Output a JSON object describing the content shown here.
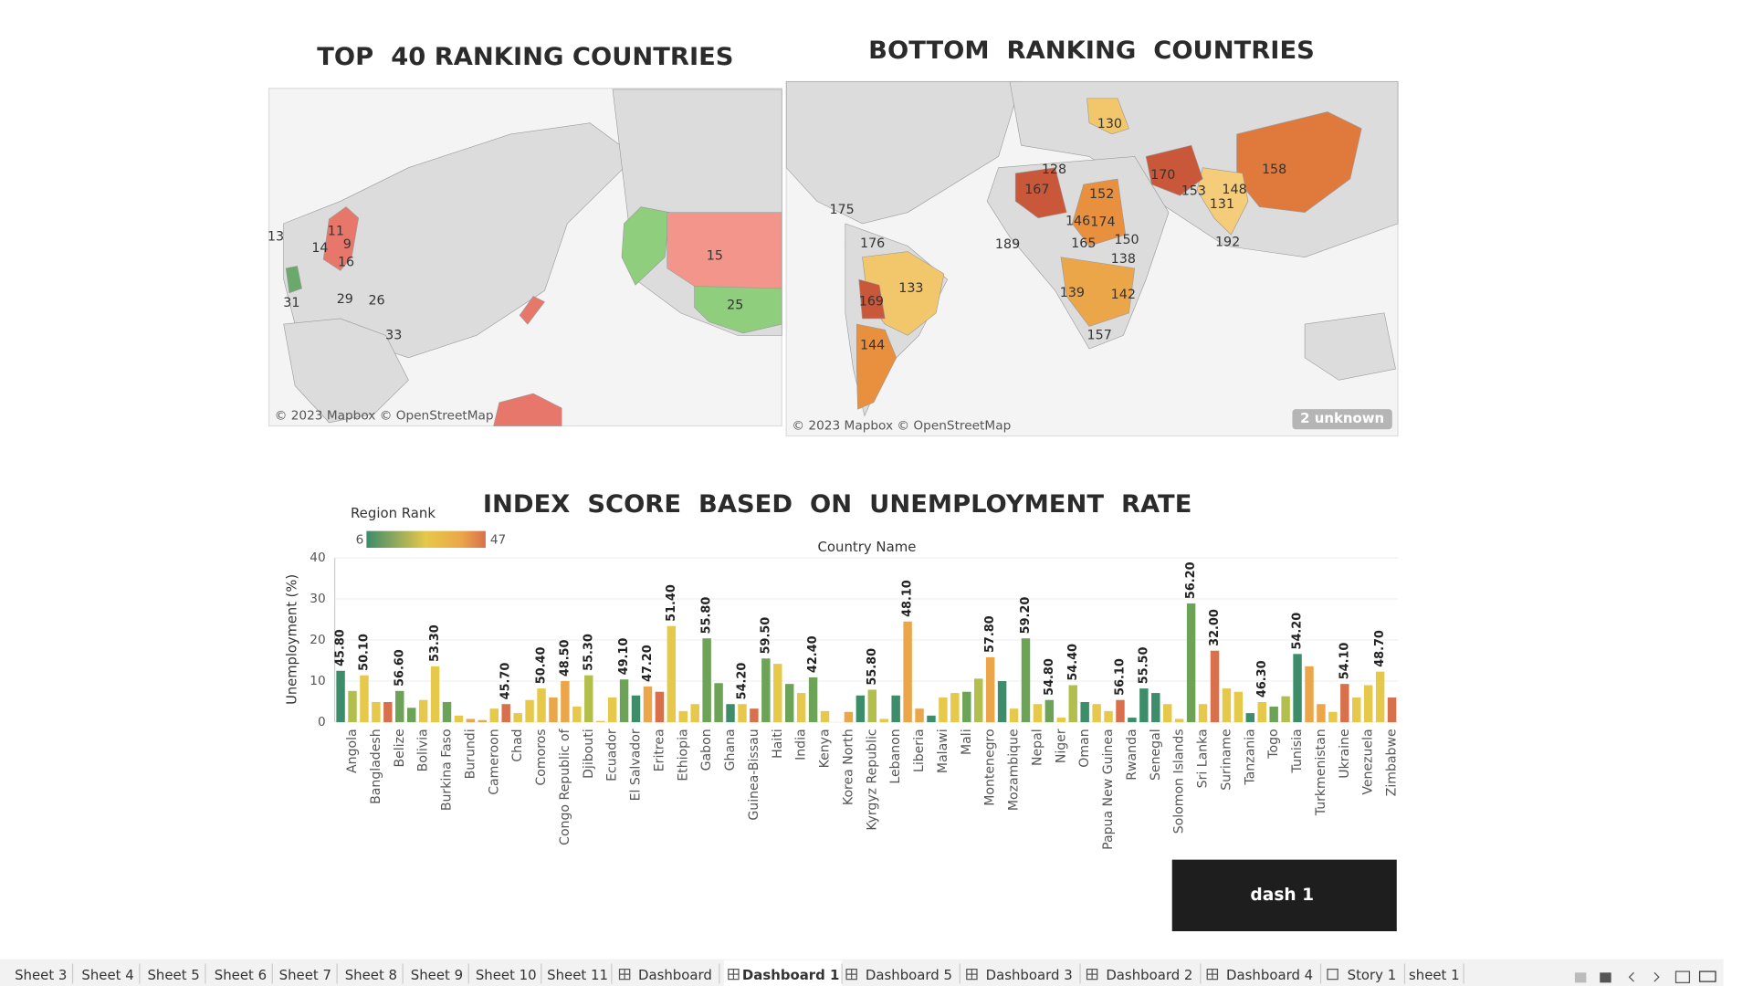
{
  "chart_data": [
    {
      "type": "map",
      "title": "TOP  40 RANKING COUNTRIES",
      "labels": [
        11,
        9,
        13,
        14,
        16,
        29,
        26,
        31,
        33,
        15,
        25
      ],
      "attribution": "© 2023 Mapbox © OpenStreetMap"
    },
    {
      "type": "map",
      "title": "BOTTOM  RANKING  COUNTRIES",
      "labels": [
        133,
        130,
        128,
        167,
        152,
        146,
        174,
        165,
        150,
        138,
        170,
        158,
        153,
        148,
        131,
        192,
        175,
        176,
        169,
        144,
        139,
        142,
        157,
        189
      ],
      "attribution": "© 2023 Mapbox © OpenStreetMap",
      "unknown": "2 unknown"
    },
    {
      "type": "bar",
      "title": "INDEX  SCORE  BASED  ON  UNEMPLOYMENT  RATE",
      "x_label": "Country Name",
      "y_label": "Unemployment (%)",
      "legend": {
        "title": "Region Rank",
        "min": 6,
        "max": 47
      },
      "ylim": [
        0,
        40
      ],
      "yticks": [
        0,
        10,
        20,
        30,
        40
      ],
      "grid": true,
      "categories": [
        null,
        "Angola",
        null,
        "Bangladesh",
        null,
        "Belize",
        null,
        "Bolivia",
        null,
        "Burkina Faso",
        null,
        "Burundi",
        null,
        "Cameroon",
        null,
        "Chad",
        null,
        "Comoros",
        null,
        "Congo Republic of",
        null,
        "Djibouti",
        null,
        "Ecuador",
        null,
        "El Salvador",
        null,
        "Eritrea",
        null,
        "Ethiopia",
        null,
        "Gabon",
        null,
        "Ghana",
        null,
        "Guinea-Bissau",
        null,
        "Haiti",
        null,
        "India",
        null,
        "Kenya",
        null,
        "Korea North",
        null,
        "Kyrgyz Republic",
        null,
        "Lebanon",
        null,
        "Liberia",
        null,
        "Malawi",
        null,
        "Mali",
        null,
        "Montenegro",
        null,
        "Mozambique",
        null,
        "Nepal",
        null,
        "Niger",
        null,
        "Oman",
        null,
        "Papua New Guinea",
        null,
        "Rwanda",
        null,
        "Senegal",
        null,
        "Solomon Islands",
        null,
        "Sri Lanka",
        null,
        "Suriname",
        null,
        "Tanzania",
        null,
        "Togo",
        null,
        "Tunisia",
        null,
        "Turkmenistan",
        null,
        "Ukraine",
        null,
        "Venezuela",
        null,
        "Zimbabwe"
      ],
      "values": [
        12.5,
        7.6,
        11.4,
        4.9,
        4.9,
        7.6,
        3.5,
        5.4,
        13.6,
        4.9,
        1.6,
        0.8,
        0.5,
        3.3,
        4.4,
        2.2,
        5.4,
        8.2,
        6,
        10,
        3.8,
        11.4,
        0.3,
        6,
        10.4,
        6.5,
        8.7,
        7.4,
        23.4,
        2.7,
        4.4,
        20.4,
        9.5,
        4.4,
        4.4,
        3.3,
        15.5,
        14.2,
        9.3,
        7.1,
        10.9,
        2.7,
        0,
        2.5,
        6.5,
        7.9,
        0.8,
        6.5,
        24.5,
        3.3,
        1.6,
        6,
        7.1,
        7.4,
        10.6,
        15.8,
        10,
        3.3,
        20.4,
        4.4,
        5.4,
        1.1,
        9,
        4.9,
        4.4,
        2.7,
        5.4,
        1.1,
        8.2,
        7.1,
        4.4,
        0.8,
        28.9,
        4.4,
        17.4,
        8.2,
        7.4,
        2.2,
        4.9,
        3.8,
        6.3,
        16.6,
        13.6,
        4.4,
        2.5,
        9.3,
        6,
        9,
        12.3,
        6
      ],
      "scores": [
        "45.80",
        null,
        "50.10",
        null,
        null,
        "56.60",
        null,
        null,
        "53.30",
        null,
        null,
        null,
        null,
        null,
        "45.70",
        null,
        null,
        "50.40",
        null,
        "48.50",
        null,
        "55.30",
        null,
        null,
        "49.10",
        null,
        "47.20",
        null,
        "51.40",
        null,
        null,
        "55.80",
        null,
        null,
        "54.20",
        null,
        "59.50",
        null,
        null,
        null,
        "42.40",
        null,
        null,
        null,
        null,
        "55.80",
        null,
        null,
        "48.10",
        null,
        null,
        null,
        null,
        null,
        null,
        "57.80",
        null,
        null,
        "59.20",
        null,
        "54.80",
        null,
        "54.40",
        null,
        null,
        null,
        "56.10",
        null,
        "55.50",
        null,
        null,
        null,
        "56.20",
        null,
        "32.00",
        null,
        null,
        null,
        "46.30",
        null,
        null,
        "54.20",
        null,
        null,
        null,
        "54.10",
        null,
        null,
        "48.70",
        null
      ],
      "colors": [
        "#3d8c6a",
        "#b3bf4c",
        "#e6c84a",
        "#e6c84a",
        "#d8704c",
        "#6da356",
        "#6da356",
        "#e6c84a",
        "#e6c84a",
        "#6da356",
        "#e6c84a",
        "#eba64a",
        "#eba64a",
        "#e6c84a",
        "#d8704c",
        "#e6c84a",
        "#e6c84a",
        "#e6c84a",
        "#eba64a",
        "#eba64a",
        "#e6c84a",
        "#b3bf4c",
        "#e6c84a",
        "#e6c84a",
        "#6da356",
        "#3d8c6a",
        "#eba64a",
        "#d8704c",
        "#e6c84a",
        "#e6c84a",
        "#e6c84a",
        "#6da356",
        "#6da356",
        "#3d8c6a",
        "#e6c84a",
        "#d8704c",
        "#6da356",
        "#e6c84a",
        "#6da356",
        "#e6c84a",
        "#6da356",
        "#e6c84a",
        "#e6c84a",
        "#eba64a",
        "#3d8c6a",
        "#b3bf4c",
        "#e6c84a",
        "#3d8c6a",
        "#eba64a",
        "#eba64a",
        "#3d8c6a",
        "#e6c84a",
        "#e6c84a",
        "#6da356",
        "#b3bf4c",
        "#eba64a",
        "#3d8c6a",
        "#e6c84a",
        "#6da356",
        "#e6c84a",
        "#6da356",
        "#e6c84a",
        "#b3bf4c",
        "#3d8c6a",
        "#e6c84a",
        "#e6c84a",
        "#d8704c",
        "#3d8c6a",
        "#3d8c6a",
        "#3d8c6a",
        "#e6c84a",
        "#e6c84a",
        "#6da356",
        "#e6c84a",
        "#d8704c",
        "#e6c84a",
        "#e6c84a",
        "#3d8c6a",
        "#e6c84a",
        "#6da356",
        "#b3bf4c",
        "#3d8c6a",
        "#eba64a",
        "#eba64a",
        "#e6c84a",
        "#d8704c",
        "#e6c84a",
        "#e6c84a",
        "#e6c84a",
        "#d8704c"
      ]
    }
  ],
  "button": "dash 1",
  "tabs": [
    "Sheet 3",
    "Sheet 4",
    "Sheet 5",
    "Sheet 6",
    "Sheet 7",
    "Sheet 8",
    "Sheet 9",
    "Sheet 10",
    "Sheet 11",
    "Dashboard",
    "Dashboard 1",
    "Dashboard 5",
    "Dashboard 3",
    "Dashboard 2",
    "Dashboard 4",
    "Story 1",
    "sheet 1"
  ],
  "active_tab": 10
}
